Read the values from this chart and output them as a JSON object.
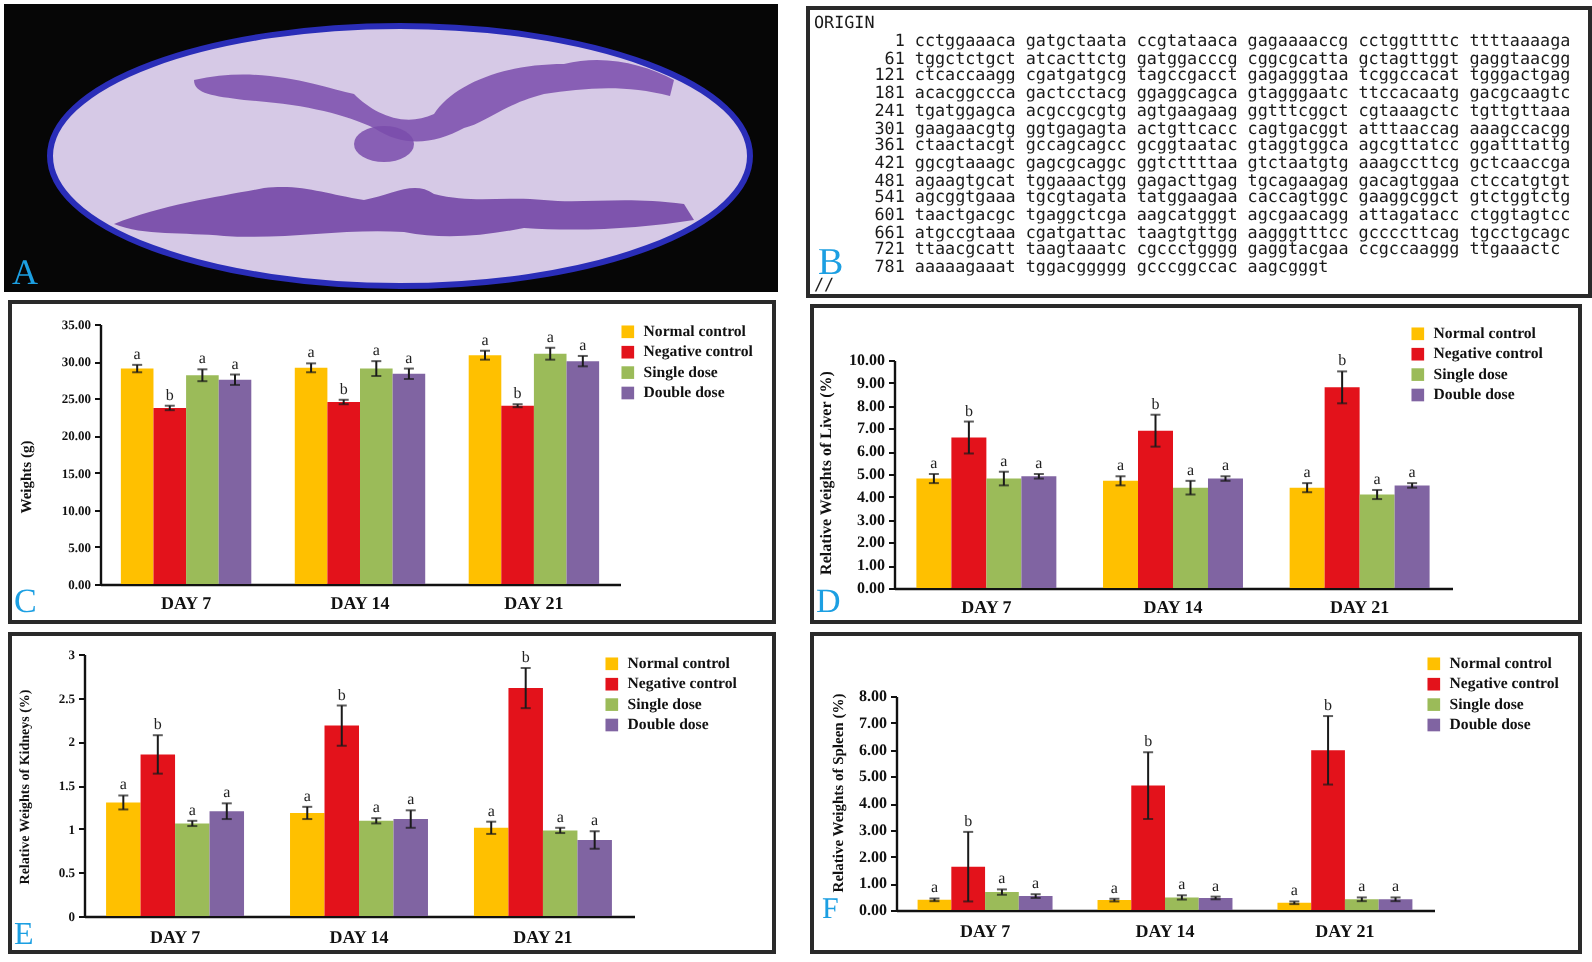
{
  "chart_data": [
    {
      "type": "other",
      "annotations": [
        "A"
      ]
    },
    {
      "type": "other",
      "title": "ORIGIN",
      "annotations": [
        "1 cctggaaaca gatgctaata ccgtataaca gagaaaaccg cctggttttc ttttaaaaga",
        "61 tggctctgct atcacttctg gatggacccg cggcgcatta gctagttggt gaggtaacgg",
        "121 ctcaccaagg cgatgatgcg tagccgacct gagagggtaa tcggccacat tgggactgag",
        "181 acacggccca gactcctacg ggaggcagca gtagggaatc ttccacaatg gacgcaagtc",
        "241 tgatggagca acgccgcgtg agtgaagaag ggtttcggct cgtaaagctc tgttgttaaa",
        "301 gaagaacgtg ggtgagagta actgttcacc cagtgacggt atttaaccag aaagccacgg",
        "361 ctaactacgt gccagcagcc gcggtaatac gtaggtggca agcgttatcc ggatttattg",
        "421 ggcgtaaagc gagcgcaggc ggtcttttaa gtctaatgtg aaagccttcg gctcaaccga",
        "481 agaagtgcat tggaaactgg gagacttgag tgcagaagag gacagtggaa ctccatgtgt",
        "541 agcggtgaaa tgcgtagata tatggaagaa caccagtggc gaaggcggct gtctggtctg",
        "601 taactgacgc tgaggctcga aagcatgggt agcgaacagg attagatacc ctggtagtcc",
        "661 atgccgtaaa cgatgattac taagtgttgg aagggtttcc gccccttcag tgcctgcagc",
        "721 ttaacgcatt taagtaaatc cgccctgggg gaggtacgaa ccgccaaggg ttgaaactc",
        "781 aaaaagaaat tggacggggg gcccggccac aagcgggt",
        "//",
        "B"
      ]
    },
    {
      "type": "bar",
      "ylabel": "Weights (g)",
      "categories": [
        "DAY 7",
        "DAY 14",
        "DAY 21"
      ],
      "series": [
        {
          "name": "Normal control",
          "color": "#ffc000",
          "values": [
            29.0,
            29.1,
            30.8
          ],
          "errors": [
            0.5,
            0.6,
            0.6
          ],
          "value_labels": [
            "a",
            "a",
            "a"
          ]
        },
        {
          "name": "Negative control",
          "color": "#e3121b",
          "values": [
            23.7,
            24.5,
            24.0
          ],
          "errors": [
            0.3,
            0.3,
            0.2
          ],
          "value_labels": [
            "b",
            "b",
            "b"
          ]
        },
        {
          "name": "Single dose",
          "color": "#9bbb59",
          "values": [
            28.1,
            29.0,
            31.0
          ],
          "errors": [
            0.8,
            1.0,
            0.8
          ],
          "value_labels": [
            "a",
            "a",
            "a"
          ]
        },
        {
          "name": "Double dose",
          "color": "#8064a2",
          "values": [
            27.5,
            28.3,
            30.0
          ],
          "errors": [
            0.7,
            0.7,
            0.7
          ],
          "value_labels": [
            "a",
            "a",
            "a"
          ]
        }
      ],
      "ylim": [
        0,
        35
      ],
      "yticks": [
        {
          "value": 0,
          "label": "0.00"
        },
        {
          "value": 5,
          "label": "5.00"
        },
        {
          "value": 10,
          "label": "10.00"
        },
        {
          "value": 15,
          "label": "15.00"
        },
        {
          "value": 20,
          "label": "20.00"
        },
        {
          "value": 25,
          "label": "25.00"
        },
        {
          "value": 30,
          "label": "30.00"
        },
        {
          "value": 35,
          "label": "35.00"
        }
      ],
      "legend": "top right",
      "annotations": [
        "C"
      ]
    },
    {
      "type": "bar",
      "ylabel": "Relative Weights of Liver (%)",
      "categories": [
        "DAY 7",
        "DAY 14",
        "DAY 21"
      ],
      "series": [
        {
          "name": "Normal control",
          "color": "#ffc000",
          "values": [
            4.8,
            4.7,
            4.4
          ],
          "errors": [
            0.2,
            0.2,
            0.2
          ],
          "value_labels": [
            "a",
            "a",
            "a"
          ]
        },
        {
          "name": "Negative control",
          "color": "#e3121b",
          "values": [
            6.6,
            6.9,
            8.8
          ],
          "errors": [
            0.7,
            0.7,
            0.7
          ],
          "value_labels": [
            "b",
            "b",
            "b"
          ]
        },
        {
          "name": "Single dose",
          "color": "#9bbb59",
          "values": [
            4.8,
            4.4,
            4.1
          ],
          "errors": [
            0.3,
            0.3,
            0.2
          ],
          "value_labels": [
            "a",
            "a",
            "a"
          ]
        },
        {
          "name": "Double dose",
          "color": "#8064a2",
          "values": [
            4.9,
            4.8,
            4.5
          ],
          "errors": [
            0.1,
            0.1,
            0.1
          ],
          "value_labels": [
            "a",
            "a",
            "a"
          ]
        }
      ],
      "ylim": [
        0,
        10
      ],
      "yticks": [
        {
          "value": 0,
          "label": "0.00"
        },
        {
          "value": 1,
          "label": "1.00"
        },
        {
          "value": 2,
          "label": "2.00"
        },
        {
          "value": 3,
          "label": "3.00"
        },
        {
          "value": 4,
          "label": "4.00"
        },
        {
          "value": 5,
          "label": "5.00"
        },
        {
          "value": 6,
          "label": "6.00"
        },
        {
          "value": 7,
          "label": "7.00"
        },
        {
          "value": 8,
          "label": "8.00"
        },
        {
          "value": 9,
          "label": "9.00"
        },
        {
          "value": 10,
          "label": "10.00"
        }
      ],
      "legend": "top right",
      "annotations": [
        "D"
      ]
    },
    {
      "type": "bar",
      "ylabel": "Relative Weights of Kidneys (%)",
      "categories": [
        "DAY 7",
        "DAY 14",
        "DAY 21"
      ],
      "series": [
        {
          "name": "Normal control",
          "color": "#ffc000",
          "values": [
            1.3,
            1.18,
            1.01
          ],
          "errors": [
            0.08,
            0.07,
            0.07
          ],
          "value_labels": [
            "a",
            "a",
            "a"
          ]
        },
        {
          "name": "Negative control",
          "color": "#e3121b",
          "values": [
            1.85,
            2.18,
            2.61
          ],
          "errors": [
            0.22,
            0.23,
            0.23
          ],
          "value_labels": [
            "b",
            "b",
            "b"
          ]
        },
        {
          "name": "Single dose",
          "color": "#9bbb59",
          "values": [
            1.06,
            1.09,
            0.98
          ],
          "errors": [
            0.03,
            0.03,
            0.03
          ],
          "value_labels": [
            "a",
            "a",
            "a"
          ]
        },
        {
          "name": "Double dose",
          "color": "#8064a2",
          "values": [
            1.2,
            1.11,
            0.87
          ],
          "errors": [
            0.09,
            0.1,
            0.1
          ],
          "value_labels": [
            "a",
            "a",
            "a"
          ]
        }
      ],
      "ylim": [
        0,
        3
      ],
      "yticks": [
        0,
        0.5,
        1,
        1.5,
        2,
        2.5,
        3
      ],
      "legend": "top right",
      "annotations": [
        "E"
      ]
    },
    {
      "type": "bar",
      "ylabel": "Relative Weights of Spleen (%)",
      "categories": [
        "DAY 7",
        "DAY 14",
        "DAY 21"
      ],
      "series": [
        {
          "name": "Normal control",
          "color": "#ffc000",
          "values": [
            0.38,
            0.37,
            0.27
          ],
          "errors": [
            0.05,
            0.05,
            0.05
          ],
          "value_labels": [
            "a",
            "a",
            "a"
          ]
        },
        {
          "name": "Negative control",
          "color": "#e3121b",
          "values": [
            1.62,
            4.65,
            5.97
          ],
          "errors": [
            1.3,
            1.25,
            1.28
          ],
          "value_labels": [
            "b",
            "b",
            "b"
          ]
        },
        {
          "name": "Single dose",
          "color": "#9bbb59",
          "values": [
            0.67,
            0.47,
            0.4
          ],
          "errors": [
            0.1,
            0.08,
            0.07
          ],
          "value_labels": [
            "a",
            "a",
            "a"
          ]
        },
        {
          "name": "Double dose",
          "color": "#8064a2",
          "values": [
            0.52,
            0.45,
            0.4
          ],
          "errors": [
            0.07,
            0.05,
            0.07
          ],
          "value_labels": [
            "a",
            "a",
            "a"
          ]
        }
      ],
      "ylim": [
        0,
        8
      ],
      "yticks": [
        {
          "value": 0,
          "label": "0.00"
        },
        {
          "value": 1,
          "label": "1.00"
        },
        {
          "value": 2,
          "label": "2.00"
        },
        {
          "value": 3,
          "label": "3.00"
        },
        {
          "value": 4,
          "label": "4.00"
        },
        {
          "value": 5,
          "label": "5.00"
        },
        {
          "value": 6,
          "label": "6.00"
        },
        {
          "value": 7,
          "label": "7.00"
        },
        {
          "value": 8,
          "label": "8.00"
        }
      ],
      "legend": "top right",
      "annotations": [
        "F"
      ]
    }
  ]
}
